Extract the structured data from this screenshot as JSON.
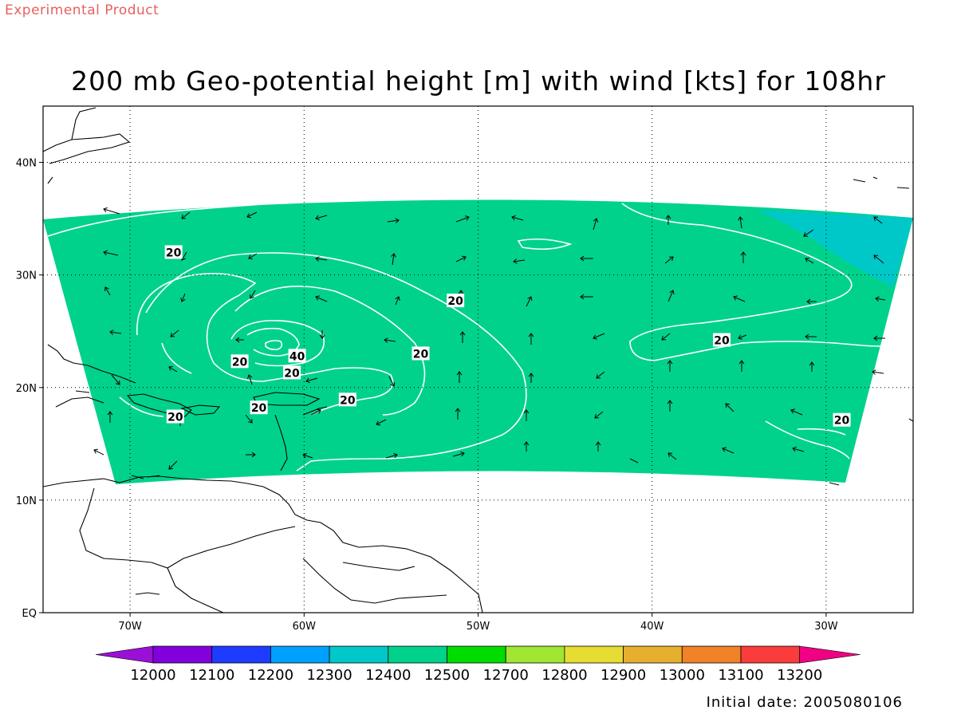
{
  "header": {
    "experimental_label": "Experimental Product",
    "title": "200 mb Geo-potential height [m] with wind [kts] for 108hr"
  },
  "map": {
    "lon_range": [
      -75,
      -25
    ],
    "lat_range": [
      0,
      45
    ],
    "grid": "dotted",
    "lat_ticks": [
      {
        "value": 40,
        "label": "40N"
      },
      {
        "value": 30,
        "label": "30N"
      },
      {
        "value": 20,
        "label": "20N"
      },
      {
        "value": 10,
        "label": "10N"
      },
      {
        "value": 0,
        "label": "EQ"
      }
    ],
    "lon_ticks": [
      {
        "value": -70,
        "label": "70W"
      },
      {
        "value": -60,
        "label": "60W"
      },
      {
        "value": -50,
        "label": "50W"
      },
      {
        "value": -40,
        "label": "40W"
      },
      {
        "value": -30,
        "label": "30W"
      }
    ],
    "fill_colors": {
      "main": "#00d28c",
      "northeast_band": "#00c8c8"
    },
    "contour_color": "#ffffff",
    "contour_labels": [
      {
        "text": "20",
        "lon": -67.5,
        "lat": 32.0
      },
      {
        "text": "20",
        "lon": -51.3,
        "lat": 27.7
      },
      {
        "text": "20",
        "lon": -63.7,
        "lat": 22.3
      },
      {
        "text": "40",
        "lon": -60.4,
        "lat": 22.8
      },
      {
        "text": "20",
        "lon": -60.7,
        "lat": 21.3
      },
      {
        "text": "20",
        "lon": -53.3,
        "lat": 23.0
      },
      {
        "text": "20",
        "lon": -57.5,
        "lat": 18.9
      },
      {
        "text": "20",
        "lon": -62.6,
        "lat": 18.2
      },
      {
        "text": "20",
        "lon": -67.4,
        "lat": 17.4
      },
      {
        "text": "20",
        "lon": -36.0,
        "lat": 24.2
      },
      {
        "text": "20",
        "lon": -29.1,
        "lat": 17.1
      }
    ]
  },
  "colorbar": {
    "colors": [
      "#9a10d6",
      "#8200dc",
      "#1e3cff",
      "#00a0ff",
      "#00c8c8",
      "#00d28c",
      "#00dc00",
      "#a0e632",
      "#e6dc32",
      "#e6af2d",
      "#f08228",
      "#fa3c3c",
      "#f00082"
    ],
    "labels": [
      "12000",
      "12100",
      "12200",
      "12300",
      "12400",
      "12500",
      "12700",
      "12800",
      "12900",
      "13000",
      "13100",
      "13200"
    ]
  },
  "footer": {
    "initial_date": "Initial date: 2005080106"
  }
}
